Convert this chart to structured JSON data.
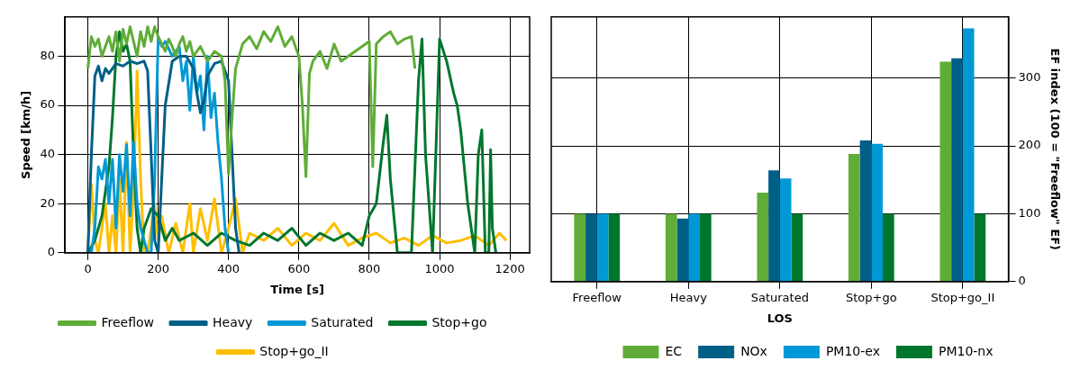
{
  "chart_data": [
    {
      "type": "line",
      "xlabel": "Time [s]",
      "ylabel": "Speed [km/h]",
      "xlim": [
        -65,
        1256
      ],
      "ylim": [
        0,
        96
      ],
      "xticks": [
        0,
        200,
        400,
        600,
        800,
        1000,
        1200
      ],
      "yticks": [
        0,
        20,
        40,
        60,
        80
      ],
      "grid": true,
      "legend": "bottom",
      "marker": "none",
      "line_style": "solid",
      "series": [
        {
          "name": "Freeflow",
          "color": "#5fad37",
          "x": [
            0,
            10,
            20,
            30,
            40,
            50,
            60,
            70,
            80,
            90,
            100,
            110,
            120,
            130,
            140,
            150,
            160,
            170,
            180,
            190,
            200,
            210,
            220,
            230,
            240,
            250,
            260,
            270,
            280,
            290,
            300,
            320,
            340,
            360,
            380,
            390,
            400,
            410,
            420,
            440,
            460,
            480,
            500,
            520,
            540,
            560,
            580,
            600,
            610,
            620,
            630,
            640,
            660,
            680,
            700,
            720,
            740,
            760,
            780,
            800,
            810,
            820,
            840,
            860,
            880,
            900,
            920,
            930
          ],
          "values": [
            75,
            88,
            84,
            87,
            80,
            84,
            88,
            82,
            90,
            78,
            91,
            85,
            92,
            86,
            80,
            90,
            84,
            92,
            86,
            92,
            88,
            85,
            82,
            87,
            84,
            80,
            85,
            88,
            82,
            86,
            80,
            84,
            78,
            82,
            80,
            70,
            32,
            55,
            75,
            85,
            88,
            83,
            90,
            86,
            92,
            84,
            88,
            80,
            60,
            31,
            73,
            78,
            82,
            75,
            85,
            78,
            80,
            82,
            84,
            86,
            35,
            85,
            88,
            90,
            85,
            87,
            88,
            75
          ]
        },
        {
          "name": "Heavy",
          "color": "#005f87",
          "x": [
            0,
            10,
            20,
            30,
            40,
            50,
            60,
            80,
            100,
            120,
            140,
            160,
            170,
            180,
            190,
            200,
            210,
            220,
            240,
            260,
            280,
            300,
            310,
            320,
            330,
            340,
            360,
            380,
            400,
            410,
            420,
            430
          ],
          "values": [
            0,
            40,
            72,
            76,
            70,
            75,
            73,
            77,
            76,
            78,
            77,
            78,
            74,
            40,
            5,
            0,
            30,
            60,
            78,
            80,
            80,
            75,
            65,
            57,
            62,
            72,
            77,
            78,
            70,
            40,
            10,
            0
          ]
        },
        {
          "name": "Saturated",
          "color": "#0099d6",
          "x": [
            0,
            10,
            20,
            30,
            40,
            50,
            60,
            70,
            80,
            90,
            100,
            110,
            120,
            130,
            140,
            150,
            160,
            170,
            180,
            190,
            200,
            210,
            220,
            240,
            260,
            270,
            280,
            290,
            300,
            310,
            320,
            330,
            340,
            350,
            360,
            370,
            380,
            390,
            400
          ],
          "values": [
            0,
            0,
            10,
            35,
            30,
            38,
            20,
            38,
            10,
            40,
            25,
            44,
            15,
            45,
            20,
            10,
            5,
            0,
            0,
            30,
            88,
            84,
            86,
            80,
            84,
            70,
            78,
            58,
            80,
            65,
            72,
            50,
            80,
            55,
            65,
            45,
            30,
            10,
            0
          ]
        },
        {
          "name": "Stop+go",
          "color": "#00772d",
          "x": [
            0,
            20,
            40,
            50,
            60,
            70,
            80,
            90,
            100,
            110,
            120,
            130,
            140,
            150,
            160,
            180,
            200,
            220,
            240,
            260,
            300,
            340,
            380,
            420,
            460,
            500,
            540,
            580,
            620,
            660,
            700,
            740,
            780,
            800,
            820,
            840,
            850,
            860,
            880,
            900,
            920,
            940,
            950,
            960,
            980,
            1000,
            1020,
            1040,
            1050,
            1060,
            1080,
            1100,
            1110,
            1120,
            1130,
            1140,
            1145,
            1150,
            1160
          ],
          "values": [
            0,
            5,
            15,
            25,
            35,
            55,
            80,
            90,
            82,
            85,
            78,
            40,
            10,
            0,
            10,
            18,
            15,
            5,
            10,
            5,
            8,
            3,
            8,
            5,
            3,
            8,
            5,
            10,
            3,
            8,
            5,
            8,
            3,
            15,
            20,
            45,
            56,
            30,
            0,
            0,
            0,
            70,
            87,
            40,
            0,
            87,
            78,
            65,
            60,
            50,
            20,
            0,
            40,
            50,
            0,
            0,
            42,
            10,
            0
          ]
        },
        {
          "name": "Stop+go_II",
          "color": "#ffbe00",
          "x": [
            0,
            10,
            20,
            30,
            50,
            60,
            70,
            80,
            90,
            100,
            110,
            120,
            130,
            140,
            150,
            160,
            170,
            190,
            200,
            210,
            230,
            250,
            270,
            290,
            300,
            320,
            340,
            360,
            380,
            400,
            420,
            440,
            460,
            500,
            540,
            580,
            620,
            660,
            700,
            740,
            780,
            820,
            860,
            900,
            940,
            980,
            1020,
            1060,
            1100,
            1140,
            1170,
            1190
          ],
          "values": [
            0,
            28,
            5,
            0,
            20,
            0,
            15,
            0,
            30,
            0,
            45,
            0,
            25,
            74,
            30,
            0,
            0,
            20,
            5,
            15,
            0,
            12,
            0,
            20,
            0,
            18,
            5,
            22,
            0,
            10,
            22,
            0,
            8,
            5,
            10,
            3,
            8,
            5,
            12,
            3,
            6,
            8,
            4,
            6,
            3,
            7,
            4,
            5,
            7,
            3,
            8,
            5
          ]
        }
      ]
    },
    {
      "type": "bar",
      "xlabel": "LOS",
      "ylabel": "EF index (100 = \"Freeflow\" EF)",
      "categories": [
        "Freeflow",
        "Heavy",
        "Saturated",
        "Stop+go",
        "Stop+go_II"
      ],
      "ylim": [
        0,
        390
      ],
      "yticks": [
        0,
        100,
        200,
        300
      ],
      "grid": true,
      "legend": "bottom",
      "series": [
        {
          "name": "EC",
          "color": "#5fad37",
          "values": [
            100,
            100,
            131,
            188,
            324
          ]
        },
        {
          "name": "NOx",
          "color": "#005f87",
          "values": [
            100,
            93,
            164,
            208,
            329
          ]
        },
        {
          "name": "PM10-ex",
          "color": "#0099d6",
          "values": [
            100,
            100,
            152,
            203,
            373
          ]
        },
        {
          "name": "PM10-nx",
          "color": "#00772d",
          "values": [
            100,
            100,
            100,
            100,
            100
          ]
        }
      ]
    }
  ]
}
